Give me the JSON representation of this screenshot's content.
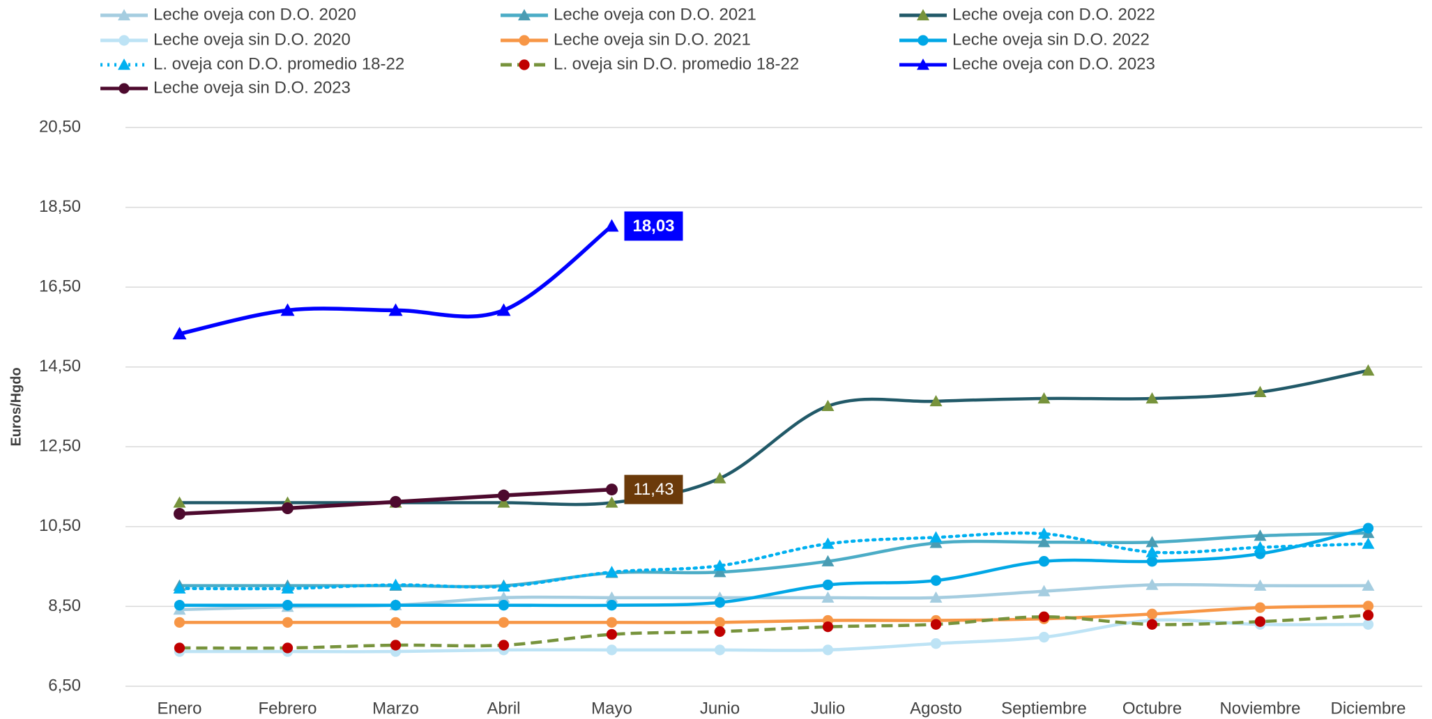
{
  "chart_data": {
    "type": "line",
    "y_label": "Euros/Hgdo",
    "categories": [
      "Enero",
      "Febrero",
      "Marzo",
      "Abril",
      "Mayo",
      "Junio",
      "Julio",
      "Agosto",
      "Septiembre",
      "Octubre",
      "Noviembre",
      "Diciembre"
    ],
    "ylim": [
      6.5,
      20.5
    ],
    "yticks": [
      {
        "value": 6.5,
        "label": "6,50"
      },
      {
        "value": 8.5,
        "label": "8,50"
      },
      {
        "value": 10.5,
        "label": "10,50"
      },
      {
        "value": 12.5,
        "label": "12,50"
      },
      {
        "value": 14.5,
        "label": "14,50"
      },
      {
        "value": 16.5,
        "label": "16,50"
      },
      {
        "value": 18.5,
        "label": "18,50"
      },
      {
        "value": 20.5,
        "label": "20,50"
      }
    ],
    "grid": true,
    "legend": "top",
    "smooth": true,
    "series": [
      {
        "name": "Leche oveja con D.O. 2020",
        "color": "#a5cde0",
        "marker": "triangle",
        "marker_color": "#a5cde0",
        "line_style": "solid",
        "values": [
          8.42,
          8.49,
          8.53,
          8.72,
          8.72,
          8.72,
          8.72,
          8.72,
          8.88,
          9.04,
          9.02,
          9.02
        ]
      },
      {
        "name": "Leche oveja con D.O. 2021",
        "color": "#4bacc6",
        "marker": "triangle",
        "marker_color": "#4a9cb3",
        "line_style": "solid",
        "values": [
          9.02,
          9.02,
          9.02,
          9.02,
          9.34,
          9.36,
          9.63,
          10.09,
          10.11,
          10.11,
          10.27,
          10.34
        ]
      },
      {
        "name": "Leche oveja con D.O. 2022",
        "color": "#215968",
        "marker": "triangle",
        "marker_color": "#77933c",
        "line_style": "solid",
        "values": [
          11.1,
          11.1,
          11.1,
          11.1,
          11.1,
          11.71,
          13.52,
          13.64,
          13.71,
          13.71,
          13.87,
          14.41
        ]
      },
      {
        "name": "Leche oveja sin D.O. 2020",
        "color": "#bde3f5",
        "marker": "circle",
        "marker_color": "#bde3f5",
        "line_style": "solid",
        "values": [
          7.37,
          7.37,
          7.37,
          7.41,
          7.41,
          7.41,
          7.41,
          7.57,
          7.73,
          8.15,
          8.05,
          8.05
        ]
      },
      {
        "name": "Leche oveja sin D.O. 2021",
        "color": "#f79646",
        "marker": "circle",
        "marker_color": "#f79646",
        "line_style": "solid",
        "values": [
          8.1,
          8.1,
          8.1,
          8.1,
          8.1,
          8.1,
          8.15,
          8.15,
          8.19,
          8.31,
          8.47,
          8.51
        ]
      },
      {
        "name": "Leche oveja sin D.O. 2022",
        "color": "#00a7e6",
        "marker": "circle",
        "marker_color": "#00a7e6",
        "line_style": "solid",
        "values": [
          8.53,
          8.53,
          8.53,
          8.53,
          8.53,
          8.6,
          9.04,
          9.15,
          9.63,
          9.63,
          9.82,
          10.46
        ]
      },
      {
        "name": "L. oveja con D.O. promedio 18-22",
        "color": "#00b0f0",
        "marker": "triangle",
        "marker_color": "#00b0f0",
        "line_style": "dotted",
        "values": [
          8.95,
          8.95,
          9.04,
          9.0,
          9.36,
          9.52,
          10.07,
          10.23,
          10.32,
          9.86,
          9.98,
          10.07
        ]
      },
      {
        "name": "L. oveja sin D.O. promedio 18-22",
        "color": "#77933c",
        "marker": "circle",
        "marker_color": "#c00000",
        "line_style": "dashed",
        "values": [
          7.46,
          7.46,
          7.53,
          7.53,
          7.8,
          7.87,
          7.99,
          8.05,
          8.24,
          8.05,
          8.12,
          8.28
        ]
      },
      {
        "name": "Leche oveja con D.O. 2023",
        "color": "#0000ff",
        "marker": "triangle",
        "marker_color": "#0000ff",
        "line_style": "solid",
        "label_color": "#0000ff",
        "values": [
          15.33,
          15.92,
          15.92,
          15.92,
          18.03,
          null,
          null,
          null,
          null,
          null,
          null,
          null
        ],
        "value_labels": [
          null,
          null,
          null,
          null,
          "18,03",
          null,
          null,
          null,
          null,
          null,
          null,
          null
        ]
      },
      {
        "name": "Leche oveja sin D.O. 2023",
        "color": "#4d0a2e",
        "marker": "circle",
        "marker_color": "#4d0a2e",
        "line_style": "solid",
        "label_color": "#6b3a0a",
        "values": [
          10.82,
          10.96,
          11.12,
          11.28,
          11.43,
          null,
          null,
          null,
          null,
          null,
          null,
          null
        ],
        "value_labels": [
          null,
          null,
          null,
          null,
          "11,43",
          null,
          null,
          null,
          null,
          null,
          null,
          null
        ]
      }
    ]
  }
}
